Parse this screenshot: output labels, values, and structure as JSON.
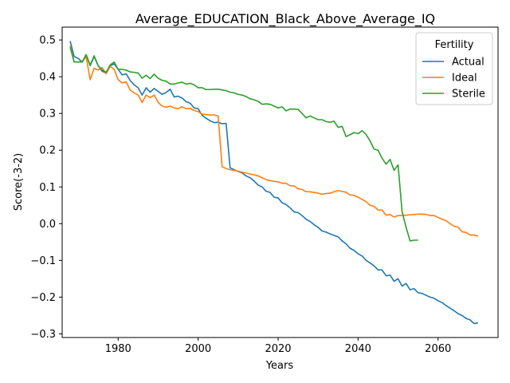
{
  "chart_data": {
    "type": "line",
    "title": "Average_EDUCATION_Black_Above_Average_IQ",
    "xlabel": "Years",
    "ylabel": "Score(-3-2)",
    "xlim": [
      1966,
      2075
    ],
    "ylim": [
      -0.31,
      0.535
    ],
    "xticks": [
      1980,
      2000,
      2020,
      2040,
      2060
    ],
    "yticks": [
      -0.3,
      -0.2,
      -0.1,
      0.0,
      0.1,
      0.2,
      0.3,
      0.4,
      0.5
    ],
    "ytick_labels": [
      "−0.3",
      "−0.2",
      "−0.1",
      "0.0",
      "0.1",
      "0.2",
      "0.3",
      "0.4",
      "0.5"
    ],
    "grid": false,
    "legend": {
      "title": "Fertility",
      "placement": "top-right"
    },
    "series": [
      {
        "name": "Actual",
        "color": "#1f77b4",
        "x": [
          1968,
          1969,
          1970,
          1971,
          1972,
          1973,
          1974,
          1975,
          1976,
          1977,
          1978,
          1979,
          1980,
          1981,
          1982,
          1983,
          1984,
          1985,
          1986,
          1987,
          1988,
          1989,
          1990,
          1991,
          1992,
          1993,
          1994,
          1995,
          1996,
          1997,
          1998,
          1999,
          2000,
          2001,
          2002,
          2003,
          2004,
          2005,
          2006,
          2007,
          2008,
          2009,
          2010,
          2011,
          2012,
          2013,
          2014,
          2015,
          2016,
          2017,
          2018,
          2019,
          2020,
          2021,
          2022,
          2023,
          2024,
          2025,
          2026,
          2027,
          2028,
          2029,
          2030,
          2031,
          2032,
          2033,
          2034,
          2035,
          2036,
          2037,
          2038,
          2039,
          2040,
          2041,
          2042,
          2043,
          2044,
          2045,
          2046,
          2047,
          2048,
          2049,
          2050,
          2051,
          2052,
          2053,
          2054,
          2055,
          2056,
          2057,
          2058,
          2059,
          2060,
          2061,
          2062,
          2063,
          2064,
          2065,
          2066,
          2067,
          2068,
          2069,
          2070
        ],
        "y": [
          0.497,
          0.455,
          0.45,
          0.44,
          0.46,
          0.43,
          0.455,
          0.43,
          0.415,
          0.41,
          0.43,
          0.435,
          0.42,
          0.405,
          0.408,
          0.39,
          0.378,
          0.37,
          0.35,
          0.37,
          0.358,
          0.368,
          0.36,
          0.352,
          0.357,
          0.366,
          0.345,
          0.347,
          0.342,
          0.332,
          0.328,
          0.315,
          0.313,
          0.295,
          0.287,
          0.28,
          0.275,
          0.276,
          0.272,
          0.273,
          0.152,
          0.147,
          0.142,
          0.138,
          0.13,
          0.125,
          0.116,
          0.105,
          0.1,
          0.088,
          0.085,
          0.072,
          0.07,
          0.057,
          0.052,
          0.043,
          0.032,
          0.03,
          0.022,
          0.012,
          0.006,
          -0.003,
          -0.01,
          -0.02,
          -0.023,
          -0.028,
          -0.032,
          -0.036,
          -0.047,
          -0.055,
          -0.067,
          -0.073,
          -0.082,
          -0.088,
          -0.1,
          -0.107,
          -0.115,
          -0.126,
          -0.126,
          -0.142,
          -0.14,
          -0.157,
          -0.15,
          -0.17,
          -0.163,
          -0.18,
          -0.177,
          -0.188,
          -0.19,
          -0.195,
          -0.2,
          -0.203,
          -0.21,
          -0.215,
          -0.223,
          -0.23,
          -0.237,
          -0.245,
          -0.25,
          -0.258,
          -0.262,
          -0.272,
          -0.27
        ]
      },
      {
        "name": "Ideal",
        "color": "#ff7f0e",
        "x": [
          1968,
          1969,
          1970,
          1971,
          1972,
          1973,
          1974,
          1975,
          1976,
          1977,
          1978,
          1979,
          1980,
          1981,
          1982,
          1983,
          1984,
          1985,
          1986,
          1987,
          1988,
          1989,
          1990,
          1991,
          1992,
          1993,
          1994,
          1995,
          1996,
          1997,
          1998,
          1999,
          2000,
          2001,
          2002,
          2003,
          2004,
          2005,
          2006,
          2007,
          2008,
          2009,
          2010,
          2011,
          2012,
          2013,
          2014,
          2015,
          2016,
          2017,
          2018,
          2019,
          2020,
          2021,
          2022,
          2023,
          2024,
          2025,
          2026,
          2027,
          2028,
          2029,
          2030,
          2031,
          2032,
          2033,
          2034,
          2035,
          2036,
          2037,
          2038,
          2039,
          2040,
          2041,
          2042,
          2043,
          2044,
          2045,
          2046,
          2047,
          2048,
          2049,
          2050,
          2051,
          2052,
          2053,
          2054,
          2055,
          2056,
          2057,
          2058,
          2059,
          2060,
          2061,
          2062,
          2063,
          2064,
          2065,
          2066,
          2067,
          2068,
          2069,
          2070
        ],
        "y": [
          0.485,
          0.44,
          0.44,
          0.44,
          0.455,
          0.392,
          0.423,
          0.418,
          0.425,
          0.408,
          0.428,
          0.42,
          0.392,
          0.383,
          0.386,
          0.364,
          0.356,
          0.35,
          0.33,
          0.35,
          0.343,
          0.35,
          0.33,
          0.32,
          0.317,
          0.32,
          0.315,
          0.313,
          0.318,
          0.313,
          0.314,
          0.308,
          0.305,
          0.298,
          0.297,
          0.296,
          0.296,
          0.293,
          0.155,
          0.15,
          0.147,
          0.145,
          0.143,
          0.14,
          0.138,
          0.135,
          0.133,
          0.13,
          0.125,
          0.12,
          0.117,
          0.115,
          0.114,
          0.11,
          0.11,
          0.103,
          0.103,
          0.095,
          0.093,
          0.087,
          0.087,
          0.085,
          0.083,
          0.08,
          0.082,
          0.083,
          0.087,
          0.09,
          0.088,
          0.085,
          0.078,
          0.077,
          0.072,
          0.066,
          0.06,
          0.05,
          0.047,
          0.037,
          0.037,
          0.023,
          0.025,
          0.018,
          0.022,
          0.022,
          0.023,
          0.024,
          0.025,
          0.026,
          0.026,
          0.025,
          0.022,
          0.022,
          0.017,
          0.012,
          0.008,
          0.0,
          -0.007,
          -0.01,
          -0.022,
          -0.024,
          -0.031,
          -0.031,
          -0.034
        ]
      },
      {
        "name": "Sterile",
        "color": "#2ca02c",
        "x": [
          1968,
          1969,
          1970,
          1971,
          1972,
          1973,
          1974,
          1975,
          1976,
          1977,
          1978,
          1979,
          1980,
          1981,
          1982,
          1983,
          1984,
          1985,
          1986,
          1987,
          1988,
          1989,
          1990,
          1991,
          1992,
          1993,
          1994,
          1995,
          1996,
          1997,
          1998,
          1999,
          2000,
          2001,
          2002,
          2003,
          2004,
          2005,
          2006,
          2007,
          2008,
          2009,
          2010,
          2011,
          2012,
          2013,
          2014,
          2015,
          2016,
          2017,
          2018,
          2019,
          2020,
          2021,
          2022,
          2023,
          2024,
          2025,
          2026,
          2027,
          2028,
          2029,
          2030,
          2031,
          2032,
          2033,
          2034,
          2035,
          2036,
          2037,
          2038,
          2039,
          2040,
          2041,
          2042,
          2043,
          2044,
          2045,
          2046,
          2047,
          2048,
          2049,
          2050,
          2051,
          2052,
          2053,
          2054,
          2055
        ],
        "y": [
          0.48,
          0.44,
          0.44,
          0.44,
          0.46,
          0.432,
          0.457,
          0.43,
          0.418,
          0.412,
          0.432,
          0.44,
          0.42,
          0.42,
          0.418,
          0.413,
          0.412,
          0.41,
          0.396,
          0.404,
          0.395,
          0.407,
          0.396,
          0.39,
          0.388,
          0.38,
          0.38,
          0.383,
          0.385,
          0.38,
          0.382,
          0.378,
          0.37,
          0.37,
          0.365,
          0.365,
          0.366,
          0.366,
          0.364,
          0.362,
          0.358,
          0.356,
          0.352,
          0.35,
          0.346,
          0.34,
          0.337,
          0.333,
          0.325,
          0.326,
          0.325,
          0.32,
          0.315,
          0.318,
          0.307,
          0.312,
          0.312,
          0.311,
          0.3,
          0.288,
          0.293,
          0.288,
          0.283,
          0.283,
          0.278,
          0.276,
          0.279,
          0.262,
          0.265,
          0.237,
          0.242,
          0.248,
          0.245,
          0.253,
          0.243,
          0.225,
          0.203,
          0.2,
          0.178,
          0.162,
          0.175,
          0.145,
          0.16,
          0.033,
          -0.01,
          -0.047,
          -0.045,
          -0.045
        ]
      }
    ]
  }
}
